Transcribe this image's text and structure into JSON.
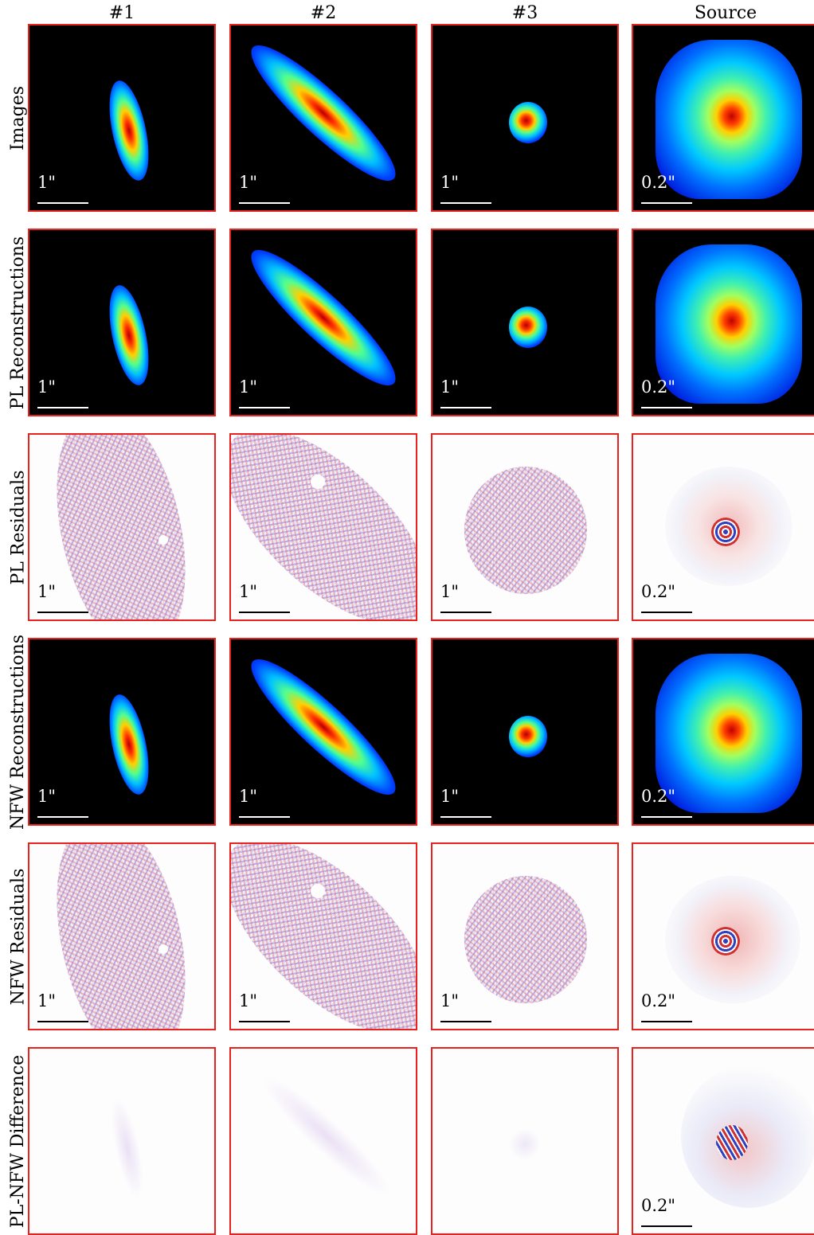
{
  "columns": [
    "#1",
    "#2",
    "#3",
    "Source"
  ],
  "rows": [
    "Images",
    "PL Reconstructions",
    "PL Residuals",
    "NFW Reconstructions",
    "NFW Residuals",
    "PL-NFW Difference"
  ],
  "scales": {
    "image": "1\"",
    "source": "0.2\""
  },
  "colors": {
    "frame": "#e8231f",
    "background": "#000000",
    "residual_positive": "#e05a5a",
    "residual_negative": "#4a5adc"
  }
}
